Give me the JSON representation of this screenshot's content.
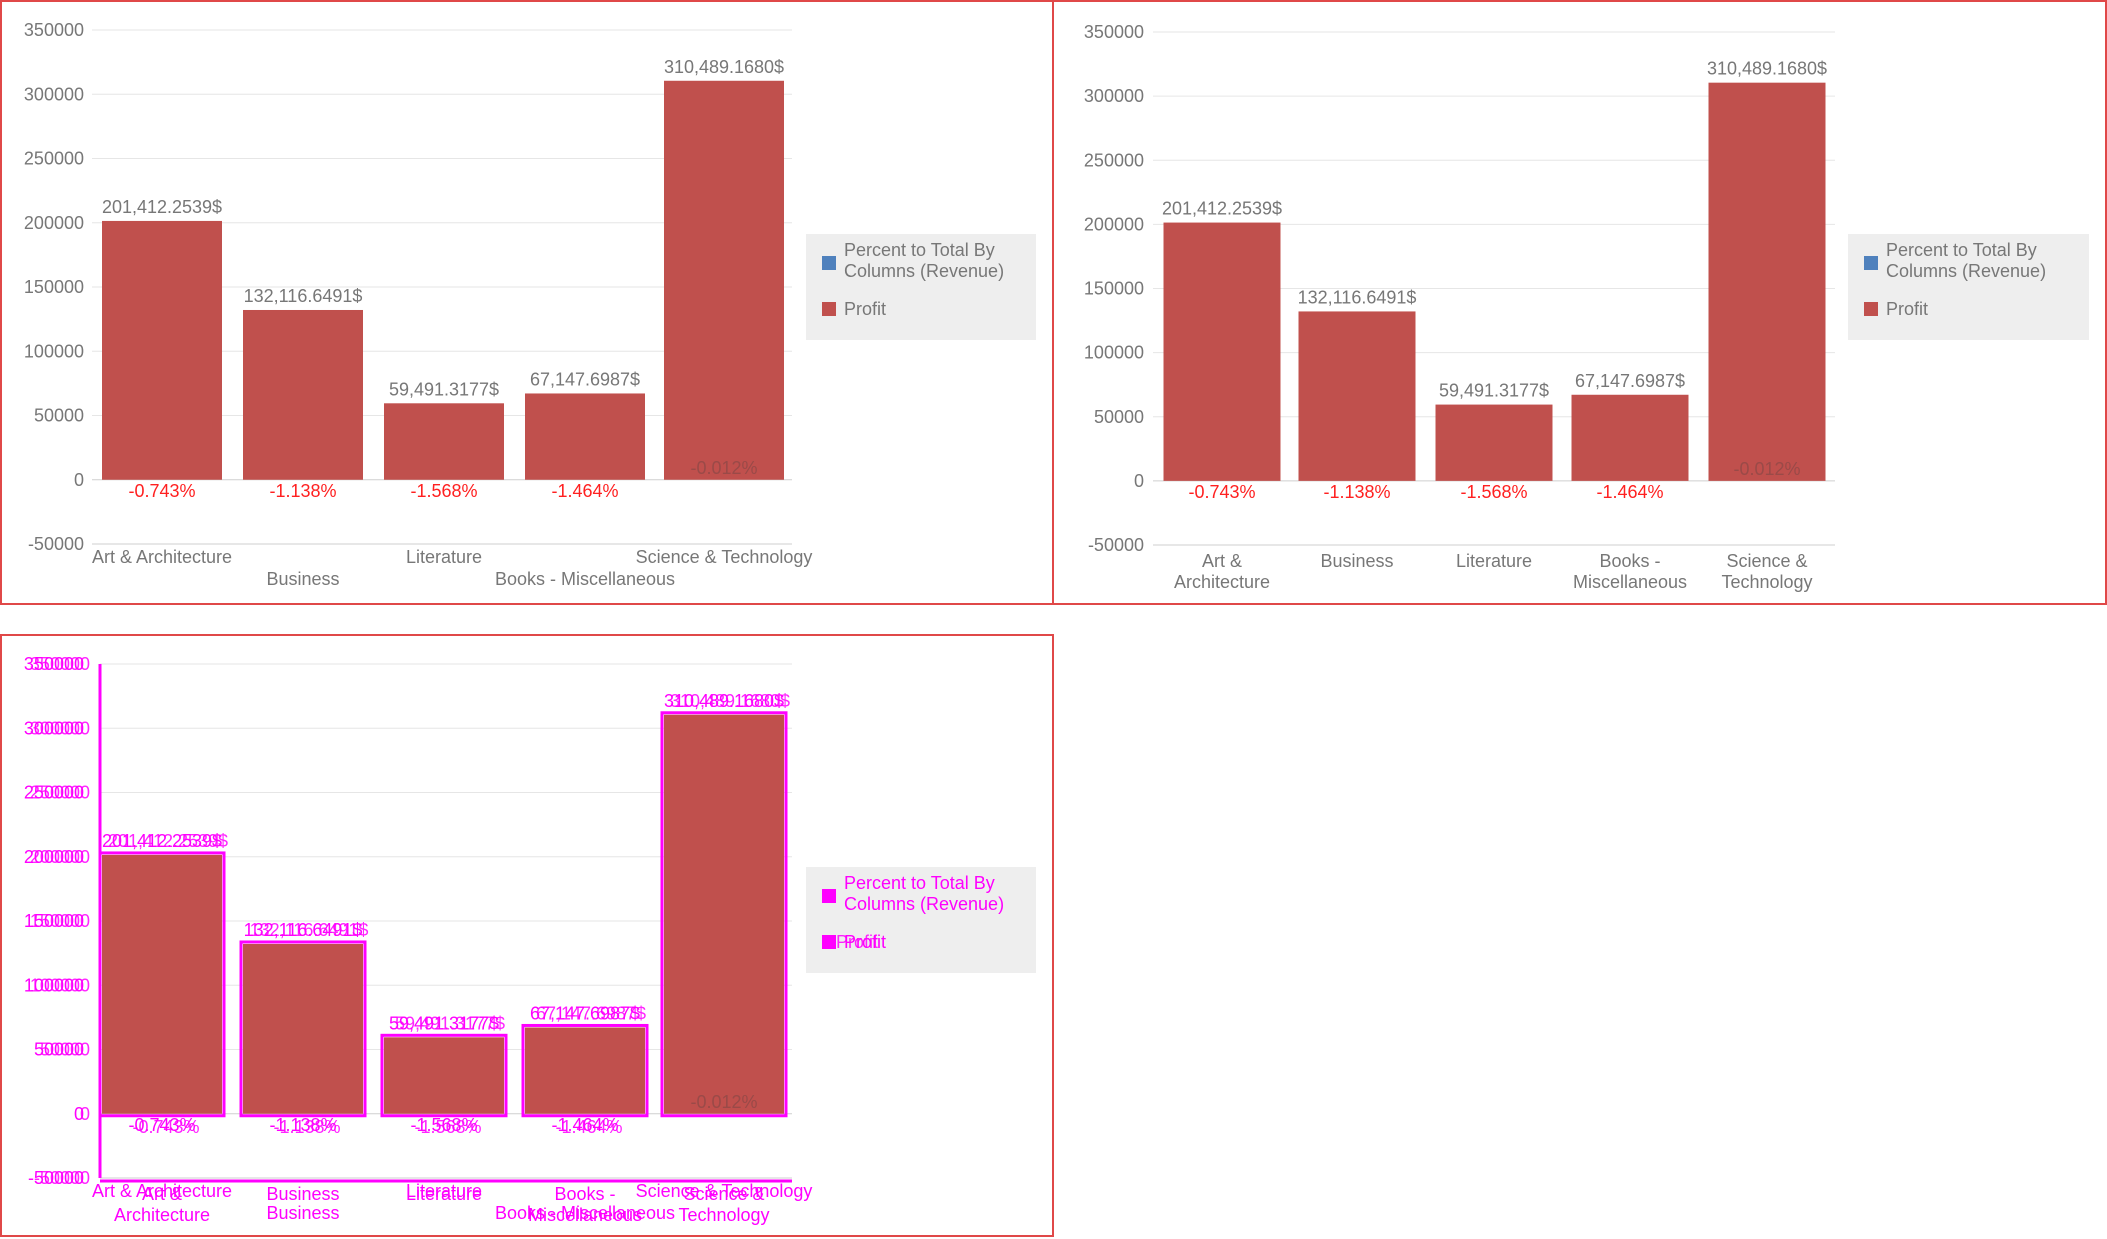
{
  "colors": {
    "bar": "#c0504d",
    "legend_revenue": "#4f81bd",
    "legend_profit": "#c0504d",
    "axis_text": "#777777",
    "data_label": "#777777",
    "negative": "#ff2020",
    "grid": "#e6e6e6",
    "legend_bg": "#eeeeee",
    "overlay": "#ff00ff",
    "border": "#e04848"
  },
  "chart_data": [
    {
      "type": "bar",
      "categories": [
        "Art & Architecture",
        "Business",
        "Literature",
        "Books - Miscellaneous",
        "Science & Technology"
      ],
      "series": [
        {
          "name": "Profit",
          "values": [
            201412.2539,
            132116.6491,
            59491.3177,
            67147.6987,
            310489.168
          ]
        },
        {
          "name": "Percent to Total By Columns (Revenue)",
          "values": [
            -0.743,
            -1.138,
            -1.568,
            -1.464,
            null
          ]
        }
      ],
      "data_labels": [
        "201,412.2539$",
        "132,116.6491$",
        "59,491.3177$",
        "67,147.6987$",
        "310,489.1680$"
      ],
      "percent_labels": [
        "-0.743%",
        "-1.138%",
        "-1.568%",
        "-1.464%",
        "-0.012%"
      ],
      "legend": [
        "Percent to Total By Columns (Revenue)",
        "Profit"
      ],
      "y_ticks": [
        "350000",
        "300000",
        "250000",
        "200000",
        "150000",
        "100000",
        "50000",
        "0",
        "-50000"
      ],
      "ylim": [
        -50000,
        350000
      ],
      "grid": true,
      "legend_position": "right"
    },
    {
      "type": "bar",
      "categories": [
        "Art & Architecture",
        "Business",
        "Literature",
        "Books - Miscellaneous",
        "Science & Technology"
      ],
      "series": [
        {
          "name": "Profit",
          "values": [
            201412.2539,
            132116.6491,
            59491.3177,
            67147.6987,
            310489.168
          ]
        },
        {
          "name": "Percent to Total By Columns (Revenue)",
          "values": [
            -0.743,
            -1.138,
            -1.568,
            -1.464,
            null
          ]
        }
      ],
      "data_labels": [
        "201,412.2539$",
        "132,116.6491$",
        "59,491.3177$",
        "67,147.6987$",
        "310,489.1680$"
      ],
      "percent_labels": [
        "-0.743%",
        "-1.138%",
        "-1.568%",
        "-1.464%",
        "-0.012%"
      ],
      "legend": [
        "Percent to Total By Columns (Revenue)",
        "Profit"
      ],
      "y_ticks": [
        "350000",
        "300000",
        "250000",
        "200000",
        "150000",
        "100000",
        "50000",
        "0",
        "-50000"
      ],
      "ylim": [
        -50000,
        350000
      ],
      "grid": true,
      "legend_position": "right"
    },
    {
      "type": "bar",
      "categories": [
        "Art & Architecture",
        "Business",
        "Literature",
        "Books - Miscellaneous",
        "Science & Technology"
      ],
      "series": [
        {
          "name": "Profit",
          "values": [
            201412.2539,
            132116.6491,
            59491.3177,
            67147.6987,
            310489.168
          ]
        },
        {
          "name": "Percent to Total By Columns (Revenue)",
          "values": [
            -0.743,
            -1.138,
            -1.568,
            -1.464,
            null
          ]
        }
      ],
      "data_labels": [
        "201,412.2539$",
        "132,116.6491$",
        "59,491.3177$",
        "67,147.6987$",
        "310,489.1680$"
      ],
      "percent_labels": [
        "-0.743%",
        "-1.138%",
        "-1.568%",
        "-1.464%",
        "-0.012%"
      ],
      "legend": [
        "Percent to Total By Columns (Revenue)",
        "Profit"
      ],
      "y_ticks": [
        "350000",
        "300000",
        "250000",
        "200000",
        "150000",
        "100000",
        "50000",
        "0",
        "-50000"
      ],
      "ylim": [
        -50000,
        350000
      ],
      "grid": true,
      "legend_position": "right"
    }
  ]
}
